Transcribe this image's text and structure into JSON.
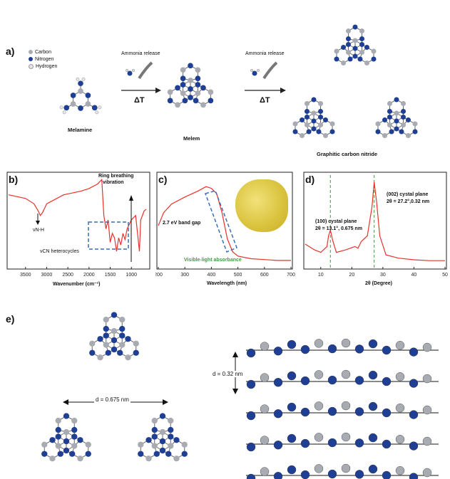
{
  "panel_a": {
    "letter": "a)",
    "legend": {
      "carbon": "Carbon",
      "nitrogen": "Nitrogen",
      "hydrogen": "Hydrogen"
    },
    "arrow1": {
      "label": "Ammonia release",
      "delta": "ΔT"
    },
    "arrow2": {
      "label": "Ammonia release",
      "delta": "ΔT"
    },
    "melamine": "Melamine",
    "melem": "Melem",
    "gcn": "Graphitic carbon nitride"
  },
  "panel_b": {
    "letter": "b)",
    "annot_nh": "νN-H",
    "annot_ring1": "Ring breathing",
    "annot_ring2": "vibration",
    "annot_cn": "νCN heterocycles",
    "xlabel": "Wavenumber (cm⁻¹)",
    "xticks": [
      "3500",
      "3000",
      "2500",
      "2000",
      "1500",
      "1000"
    ]
  },
  "panel_c": {
    "letter": "c)",
    "annot_gap": "2.7 eV band gap",
    "annot_vis": "Visible-light absorbance",
    "xlabel": "Wavelength (nm)",
    "xticks": [
      "200",
      "300",
      "400",
      "500",
      "600",
      "700"
    ]
  },
  "panel_d": {
    "letter": "d)",
    "annot_002a": "(002) cystal plane",
    "annot_002b": "2θ = 27.2°,0.32 nm",
    "annot_100a": "(100) cystal plane",
    "annot_100b": "2θ = 13.1°, 0.675 nm",
    "xlabel": "2θ (Degree)",
    "xticks": [
      "10",
      "20",
      "30",
      "40",
      "50"
    ]
  },
  "panel_e": {
    "letter": "e)",
    "d_in_plane": "d = 0.675 nm",
    "d_stack": "d = 0.32 nm"
  },
  "colors": {
    "curve": "#e8322b",
    "nitrogen": "#1f3f94",
    "carbon": "#a8abb2",
    "dashed_box": "#3a6fb5",
    "green": "#3f9b3f"
  },
  "chart_data": [
    {
      "type": "line",
      "title": "",
      "xlabel": "Wavenumber (cm⁻¹)",
      "ylabel": "",
      "xlim": [
        3900,
        600
      ],
      "x": [
        3900,
        3500,
        3300,
        3200,
        3150,
        3100,
        3000,
        2600,
        2200,
        2000,
        1800,
        1700,
        1650,
        1600,
        1550,
        1500,
        1450,
        1400,
        1350,
        1300,
        1250,
        1200,
        1150,
        1100,
        1000,
        900,
        810,
        780,
        700,
        650
      ],
      "values": [
        0.78,
        0.74,
        0.68,
        0.6,
        0.55,
        0.58,
        0.68,
        0.78,
        0.82,
        0.85,
        0.9,
        0.95,
        0.55,
        0.4,
        0.5,
        0.25,
        0.35,
        0.3,
        0.15,
        0.3,
        0.22,
        0.35,
        0.28,
        0.4,
        0.5,
        0.55,
        0.15,
        0.5,
        0.6,
        0.62
      ]
    },
    {
      "type": "line",
      "title": "",
      "xlabel": "Wavelength (nm)",
      "ylabel": "",
      "xlim": [
        200,
        700
      ],
      "x": [
        200,
        220,
        250,
        300,
        350,
        380,
        400,
        420,
        440,
        460,
        480,
        500,
        550,
        600,
        650,
        700
      ],
      "values": [
        0.45,
        0.6,
        0.7,
        0.78,
        0.85,
        0.9,
        0.88,
        0.82,
        0.6,
        0.3,
        0.15,
        0.1,
        0.07,
        0.06,
        0.05,
        0.05
      ]
    },
    {
      "type": "line",
      "title": "",
      "xlabel": "2θ (Degree)",
      "ylabel": "",
      "xlim": [
        5,
        50
      ],
      "x": [
        5,
        8,
        10,
        12,
        12.5,
        13.1,
        13.8,
        15,
        18,
        21,
        22,
        23,
        25,
        26.5,
        27.2,
        28,
        29,
        31,
        35,
        40,
        45,
        50
      ],
      "values": [
        0.25,
        0.18,
        0.15,
        0.22,
        0.35,
        0.42,
        0.3,
        0.15,
        0.18,
        0.22,
        0.2,
        0.28,
        0.35,
        0.7,
        1.0,
        0.75,
        0.35,
        0.12,
        0.08,
        0.06,
        0.05,
        0.05
      ]
    }
  ]
}
